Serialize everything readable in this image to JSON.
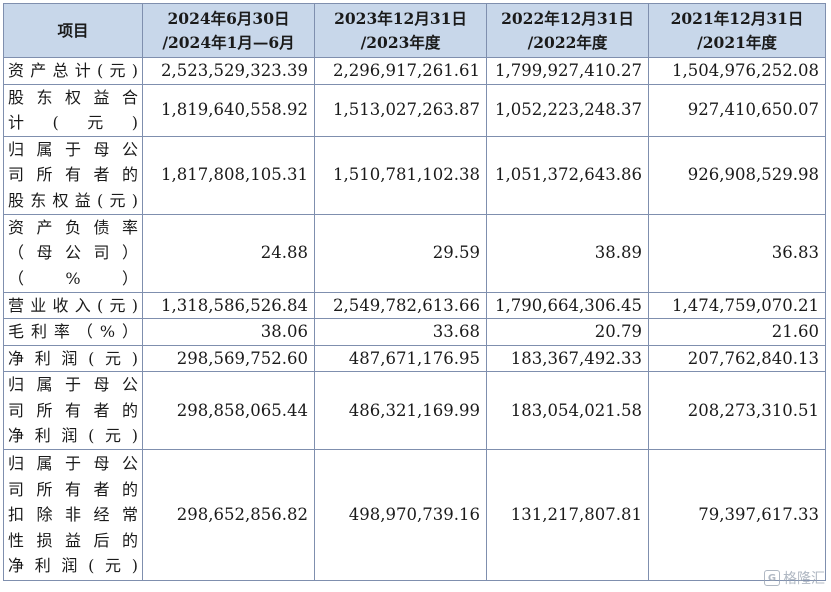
{
  "table": {
    "header": {
      "item": "项目",
      "columns": [
        {
          "line1": "2024年6月30日",
          "line2": "/2024年1月—6月"
        },
        {
          "line1": "2023年12月31日",
          "line2": "/2023年度"
        },
        {
          "line1": "2022年12月31日",
          "line2": "/2022年度"
        },
        {
          "line1": "2021年12月31日",
          "line2": "/2021年度"
        }
      ]
    },
    "rows": [
      {
        "label_lines": [
          "资产总计(元)"
        ],
        "values": [
          "2,523,529,323.39",
          "2,296,917,261.61",
          "1,799,927,410.27",
          "1,504,976,252.08"
        ]
      },
      {
        "label_lines": [
          "股东权益合",
          "计(元)"
        ],
        "values": [
          "1,819,640,558.92",
          "1,513,027,263.87",
          "1,052,223,248.37",
          "927,410,650.07"
        ]
      },
      {
        "label_lines": [
          "归属于母公",
          "司所有者的",
          "股东权益(元)"
        ],
        "values": [
          "1,817,808,105.31",
          "1,510,781,102.38",
          "1,051,372,643.86",
          "926,908,529.98"
        ]
      },
      {
        "label_lines": [
          "资产负债率",
          "（母公司）",
          "（%）"
        ],
        "values": [
          "24.88",
          "29.59",
          "38.89",
          "36.83"
        ]
      },
      {
        "label_lines": [
          "营业收入(元)"
        ],
        "values": [
          "1,318,586,526.84",
          "2,549,782,613.66",
          "1,790,664,306.45",
          "1,474,759,070.21"
        ]
      },
      {
        "label_lines": [
          "毛利率（%）"
        ],
        "values": [
          "38.06",
          "33.68",
          "20.79",
          "21.60"
        ]
      },
      {
        "label_lines": [
          "净利润(元)"
        ],
        "values": [
          "298,569,752.60",
          "487,671,176.95",
          "183,367,492.33",
          "207,762,840.13"
        ]
      },
      {
        "label_lines": [
          "归属于母公",
          "司所有者的",
          "净利润(元)"
        ],
        "values": [
          "298,858,065.44",
          "486,321,169.99",
          "183,054,021.58",
          "208,273,310.51"
        ]
      },
      {
        "label_lines": [
          "归属于母公",
          "司所有者的",
          "扣除非经常",
          "性损益后的",
          "净利润(元)"
        ],
        "values": [
          "298,652,856.82",
          "498,970,739.16",
          "131,217,807.81",
          "79,397,617.33"
        ]
      }
    ]
  },
  "watermark": {
    "icon": "gelonghui-logo-icon",
    "text": "格隆汇"
  }
}
